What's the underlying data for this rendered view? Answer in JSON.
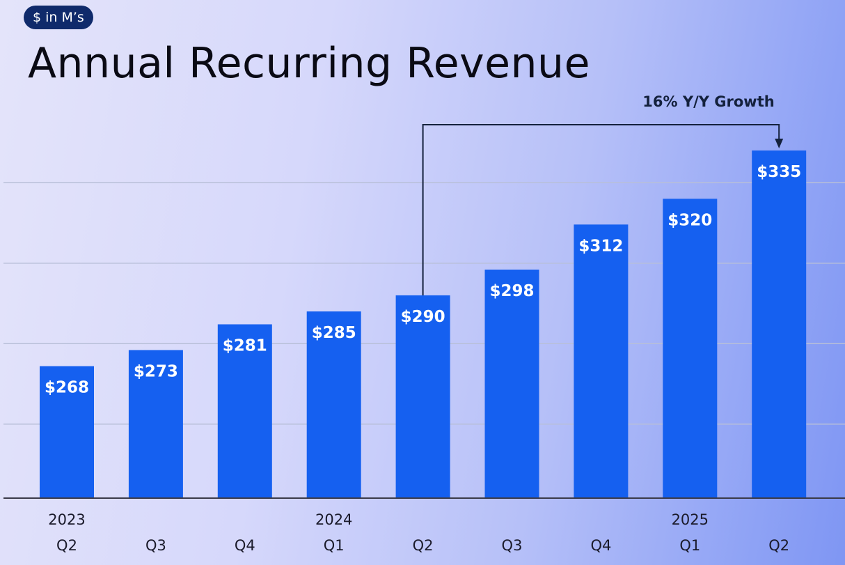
{
  "chart_data": {
    "type": "bar",
    "badge": "$ in M’s",
    "title": "Annual Recurring Revenue",
    "categories": [
      "Q2",
      "Q3",
      "Q4",
      "Q1",
      "Q2",
      "Q3",
      "Q4",
      "Q1",
      "Q2"
    ],
    "year_labels": [
      {
        "index": 0,
        "label": "2023"
      },
      {
        "index": 3,
        "label": "2024"
      },
      {
        "index": 7,
        "label": "2025"
      }
    ],
    "values": [
      268,
      273,
      281,
      285,
      290,
      298,
      312,
      320,
      335
    ],
    "data_labels": [
      "$268",
      "$273",
      "$281",
      "$285",
      "$290",
      "$298",
      "$312",
      "$320",
      "$335"
    ],
    "ylim": [
      227,
      345
    ],
    "grid": true,
    "gridlines": [
      250,
      275,
      300,
      325
    ],
    "annotation": {
      "text": "16% Y/Y Growth",
      "from_index": 4,
      "to_index": 8
    },
    "colors": {
      "bar": "#1560f0",
      "badge": "#0f2a6b",
      "annotation": "#14213d",
      "gridline": "#b8bfd8"
    }
  }
}
